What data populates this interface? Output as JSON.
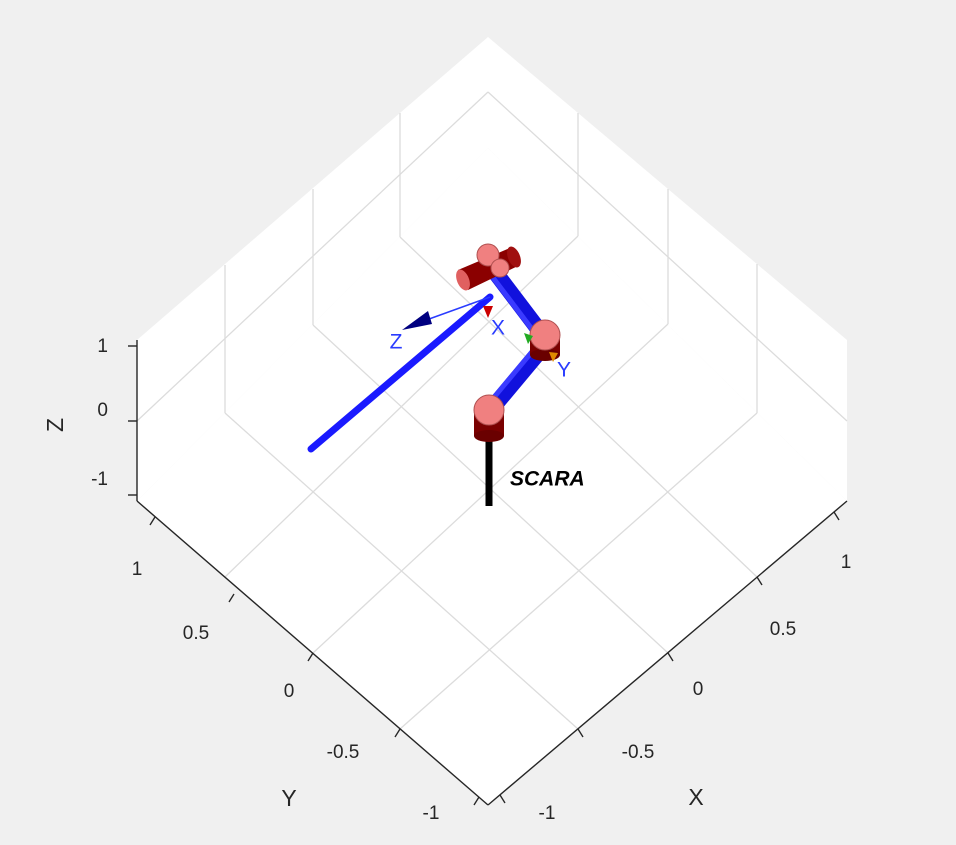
{
  "robot": {
    "name": "SCARA"
  },
  "axes": {
    "x": {
      "label": "X",
      "ticks": [
        "-1",
        "-0.5",
        "0",
        "0.5",
        "1"
      ]
    },
    "y": {
      "label": "Y",
      "ticks": [
        "-1",
        "-0.5",
        "0",
        "0.5",
        "1"
      ]
    },
    "z": {
      "label": "Z",
      "ticks": [
        "-1",
        "0",
        "1"
      ]
    },
    "grid": true
  },
  "tool_frame": {
    "x_label": "X",
    "y_label": "Y",
    "z_label": "Z"
  },
  "colors": {
    "background": "#f0f0f0",
    "panel": "#ffffff",
    "grid": "#dcdcdc",
    "axis": "#262626",
    "link": "#1a1aff",
    "joint_top": "#f08080",
    "joint_body": "#8b0000",
    "pedestal": "#000000",
    "frame_label": "#2a3cff",
    "z_arrow": "#000080"
  }
}
